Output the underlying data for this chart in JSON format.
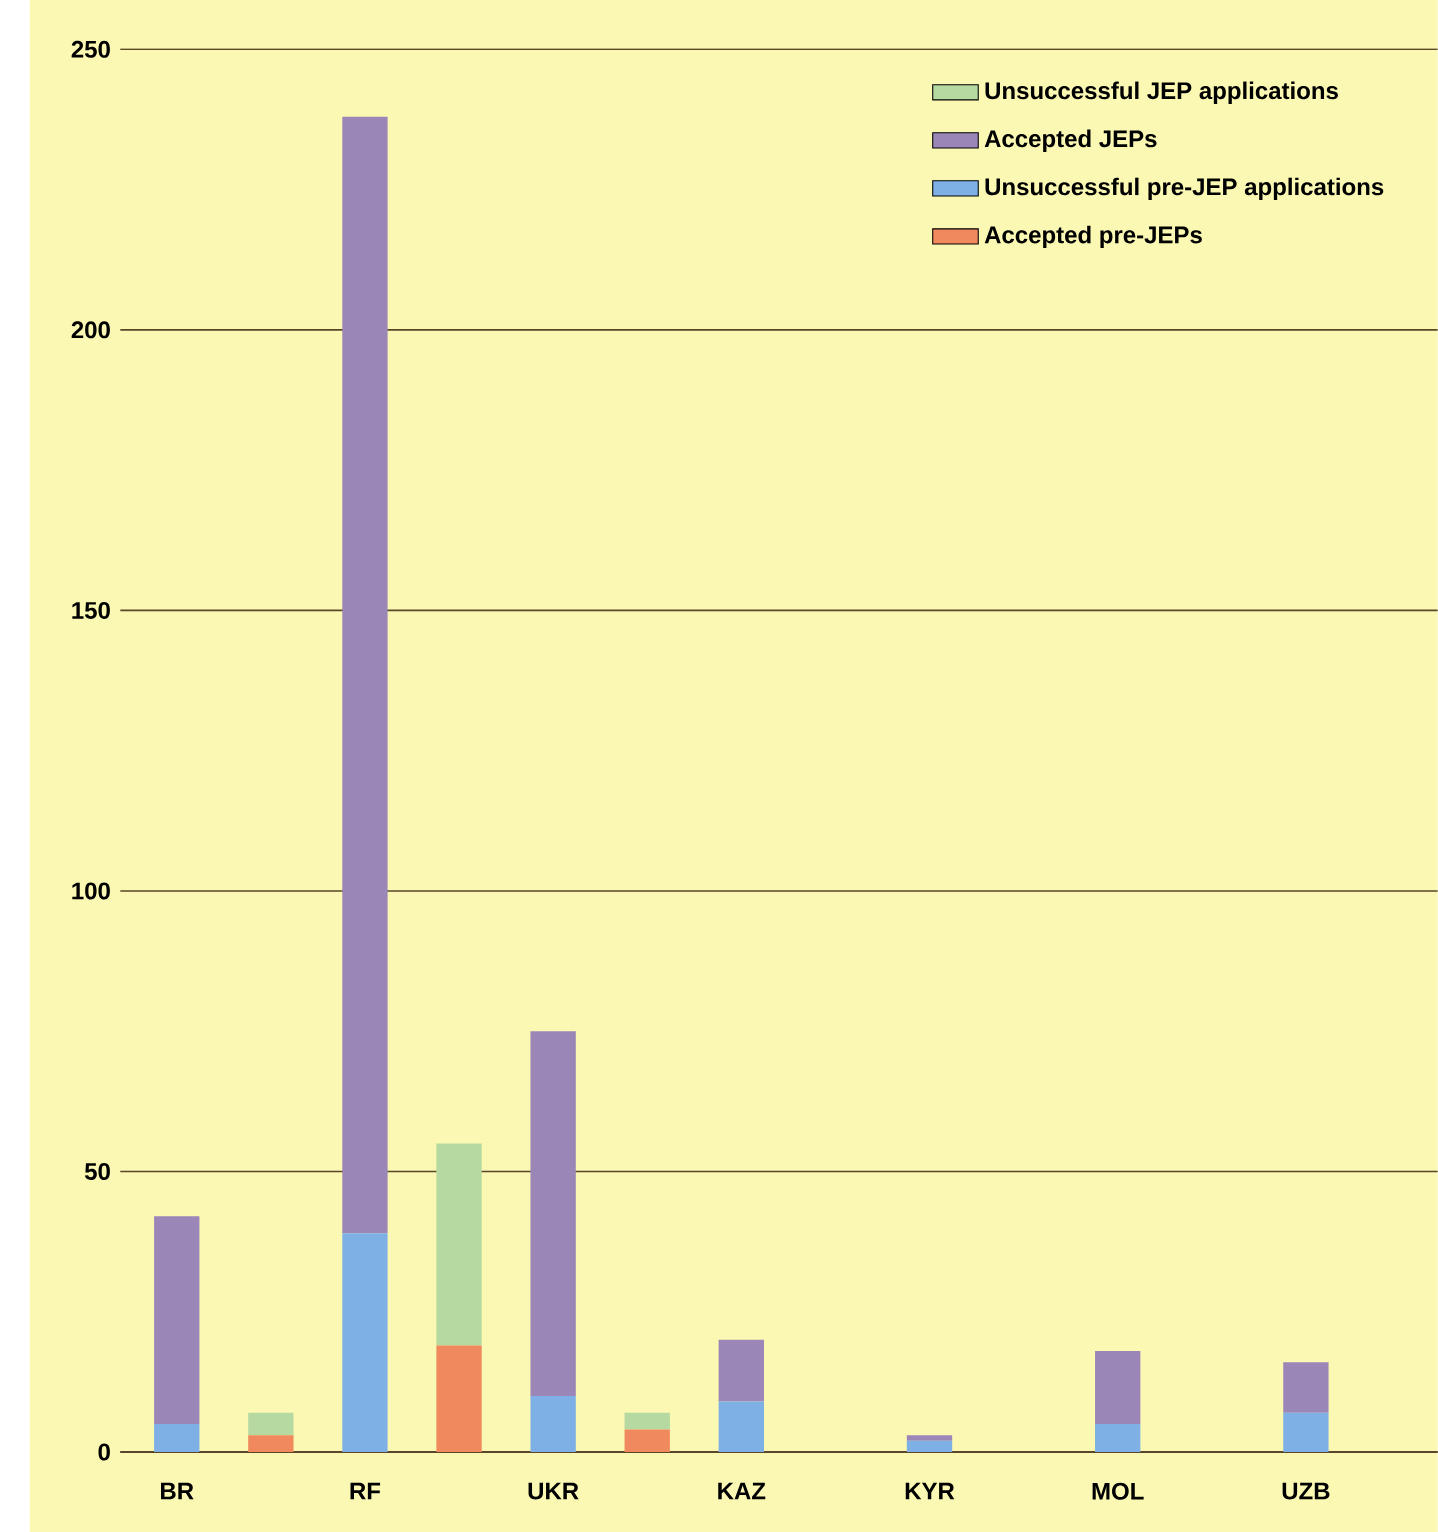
{
  "chart_data": {
    "type": "bar",
    "stacked": true,
    "categories": [
      "BR",
      null,
      "RF",
      null,
      "UKR",
      null,
      "KAZ",
      null,
      "KYR",
      null,
      "MOL",
      null,
      "UZB",
      null
    ],
    "series": [
      {
        "name": "Accepted pre-JEPs",
        "color": "#f08a5e",
        "values": [
          null,
          3,
          null,
          19,
          null,
          4,
          null,
          null,
          null,
          null,
          null,
          null,
          null,
          null
        ]
      },
      {
        "name": "Unsuccessful pre-JEP applications",
        "color": "#7eb0e6",
        "values": [
          5,
          null,
          39,
          null,
          10,
          null,
          9,
          null,
          2,
          null,
          5,
          null,
          7,
          null
        ]
      },
      {
        "name": "Accepted JEPs",
        "color": "#9b86b8",
        "values": [
          37,
          null,
          199,
          null,
          65,
          null,
          11,
          null,
          1,
          null,
          13,
          null,
          9,
          null
        ]
      },
      {
        "name": "Unsuccessful JEP applications",
        "color": "#b5d9a0",
        "values": [
          null,
          4,
          null,
          36,
          null,
          3,
          null,
          null,
          null,
          null,
          null,
          null,
          null,
          null
        ]
      }
    ],
    "ylim": [
      0,
      250
    ],
    "yticks": [
      0,
      50,
      100,
      150,
      200,
      250
    ],
    "grid": "y",
    "legend": "top right"
  }
}
